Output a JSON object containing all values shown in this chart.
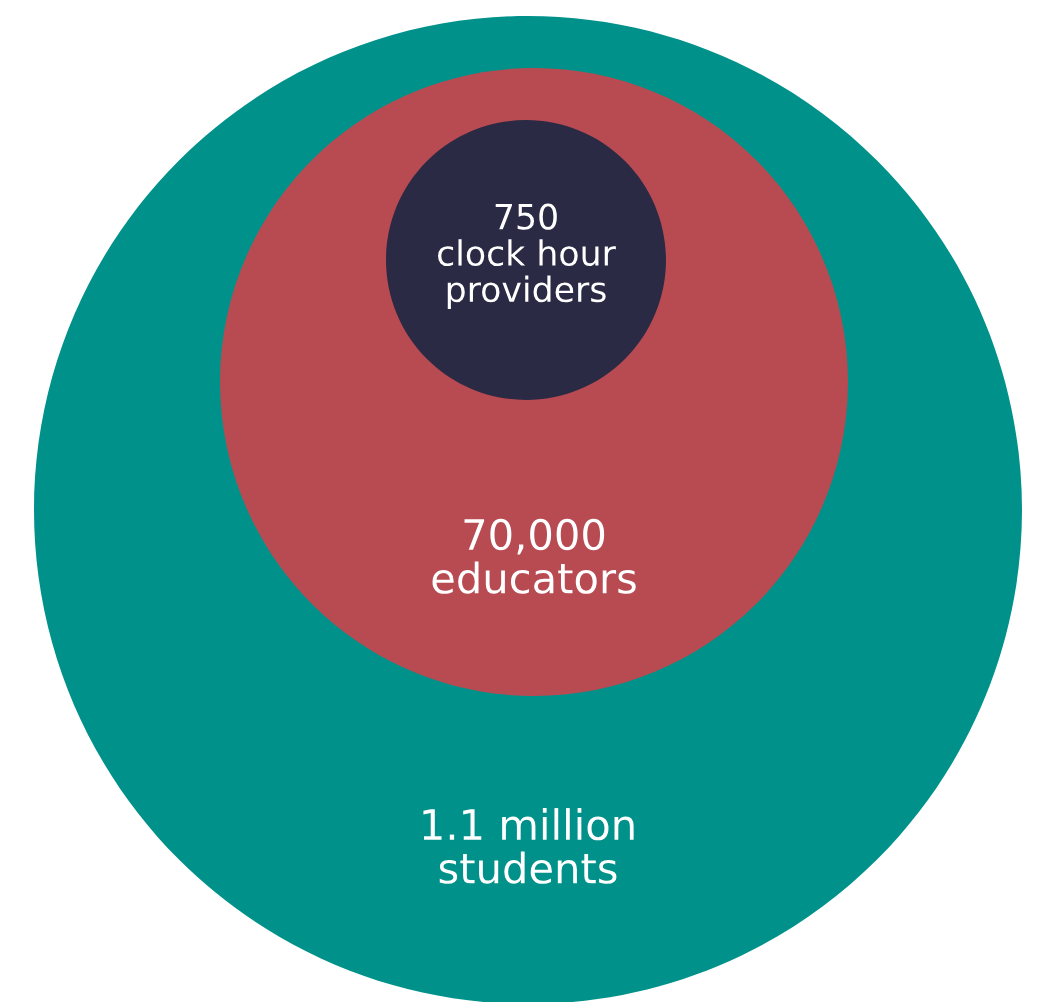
{
  "chart_data": {
    "type": "other",
    "categories": [
      "students",
      "educators",
      "clock hour providers"
    ],
    "values": [
      1100000,
      70000,
      750
    ],
    "value_labels": [
      "1.1 million",
      "70,000",
      "750"
    ],
    "colors": [
      "#00928a",
      "#b84b52",
      "#2b2a45"
    ]
  }
}
